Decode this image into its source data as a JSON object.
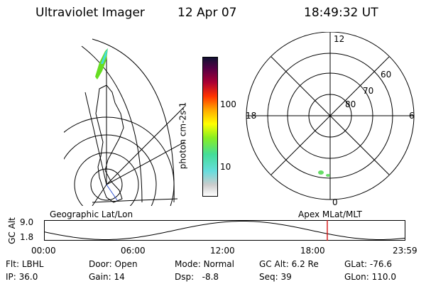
{
  "header": {
    "title": "Ultraviolet Imager",
    "date": "12 Apr 07",
    "time": "18:49:32 UT"
  },
  "colorbar": {
    "unit_label": "photon cm-2s-1",
    "ticks": [
      "100",
      "10"
    ]
  },
  "polar_plot": {
    "mlt_labels": {
      "top": "12",
      "left": "18",
      "right": "6",
      "bottom": "0"
    },
    "lat_labels": [
      "60",
      "70",
      "80"
    ]
  },
  "timeline": {
    "left_title": "Geographic Lat/Lon",
    "right_title": "Apex MLat/MLT",
    "axis_title": "GC Alt",
    "y_ticks": [
      "9.0",
      "1.8"
    ],
    "x_ticks": [
      "00:00",
      "06:00",
      "12:00",
      "18:00",
      "23:59"
    ],
    "cursor_time_fraction": 0.7844,
    "cursor_color": "#d00000"
  },
  "footer": {
    "row1": [
      {
        "label": "Flt:",
        "value": "LBHL"
      },
      {
        "label": "Door:",
        "value": "Open"
      },
      {
        "label": "Mode:",
        "value": "Normal"
      },
      {
        "label": "GC Alt:",
        "value": "6.2 Re"
      },
      {
        "label": "GLat:",
        "value": "-76.6"
      }
    ],
    "row2": [
      {
        "label": "IP:",
        "value": "36.0"
      },
      {
        "label": "Gain:",
        "value": "14"
      },
      {
        "label": "Dsp:",
        "value": "-8.8"
      },
      {
        "label": "Seq:",
        "value": "39"
      },
      {
        "label": "GLon:",
        "value": "110.0"
      }
    ]
  }
}
